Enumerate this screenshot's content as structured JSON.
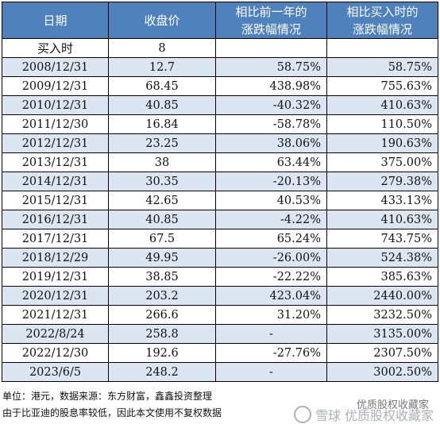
{
  "table": {
    "headers": [
      "日期",
      "收盘价",
      "相比前一年的\n涨跌幅情况",
      "相比买入时的\n涨跌幅情况"
    ],
    "rows": [
      [
        "买入时",
        "8",
        "",
        ""
      ],
      [
        "2008/12/31",
        "12.7",
        "58.75%",
        "58.75%"
      ],
      [
        "2009/12/31",
        "68.45",
        "438.98%",
        "755.63%"
      ],
      [
        "2010/12/31",
        "40.85",
        "-40.32%",
        "410.63%"
      ],
      [
        "2011/12/30",
        "16.84",
        "-58.78%",
        "110.50%"
      ],
      [
        "2012/12/31",
        "23.25",
        "38.06%",
        "190.63%"
      ],
      [
        "2013/12/31",
        "38",
        "63.44%",
        "375.00%"
      ],
      [
        "2014/12/31",
        "30.35",
        "-20.13%",
        "279.38%"
      ],
      [
        "2015/12/31",
        "42.65",
        "40.53%",
        "433.13%"
      ],
      [
        "2016/12/31",
        "40.85",
        "-4.22%",
        "410.63%"
      ],
      [
        "2017/12/31",
        "67.5",
        "65.24%",
        "743.75%"
      ],
      [
        "2018/12/29",
        "49.95",
        "-26.00%",
        "524.38%"
      ],
      [
        "2019/12/31",
        "38.85",
        "-22.22%",
        "385.63%"
      ],
      [
        "2020/12/31",
        "203.2",
        "423.04%",
        "2440.00%"
      ],
      [
        "2021/12/31",
        "266.6",
        "31.20%",
        "3232.50%"
      ],
      [
        "2022/8/24",
        "258.8",
        "-",
        "3135.00%"
      ],
      [
        "2022/12/30",
        "192.6",
        "-27.76%",
        "2307.50%"
      ],
      [
        "2023/6/5",
        "248.2",
        "-",
        "3002.50%"
      ]
    ]
  },
  "notes": {
    "source": "单位：港元，数据来源：东方财富，鑫鑫投资整理",
    "disclaimer": "由于比亚迪的股息率较低，因此本文使用不复权数据"
  },
  "watermark": {
    "account": "优质股权收藏家",
    "platform": "雪球",
    "platform_suffix": "优质股权收藏家"
  },
  "colors": {
    "header_bg": "#4f81bd",
    "band_bg": "#dce6f2"
  }
}
